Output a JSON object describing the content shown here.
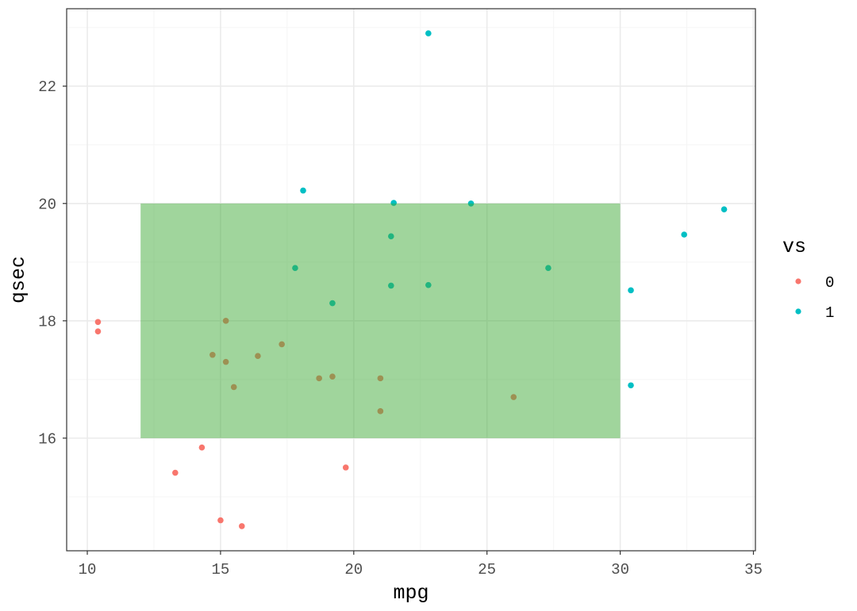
{
  "chart_data": {
    "type": "scatter",
    "title": "",
    "xlabel": "mpg",
    "ylabel": "qsec",
    "xlim": [
      9.225,
      35.075
    ],
    "ylim": [
      14.08,
      23.32
    ],
    "x_ticks": [
      10,
      15,
      20,
      25,
      30,
      35
    ],
    "y_ticks": [
      16,
      18,
      20,
      22
    ],
    "x_minor": [
      12.5,
      17.5,
      22.5,
      27.5,
      32.5
    ],
    "y_minor": [
      15,
      17,
      19,
      21,
      23
    ],
    "grid": true,
    "legend": {
      "title": "vs",
      "position": "right",
      "entries": [
        {
          "label": "0",
          "color": "#F8766D"
        },
        {
          "label": "1",
          "color": "#00BFC4"
        }
      ]
    },
    "annotation_rect": {
      "xmin": 12,
      "xmax": 30,
      "ymin": 16,
      "ymax": 20,
      "fill": "#41AB3A",
      "alpha": 0.5
    },
    "series": [
      {
        "name": "0",
        "color": "#F8766D",
        "points": [
          [
            21.0,
            16.46
          ],
          [
            21.0,
            17.02
          ],
          [
            18.7,
            17.02
          ],
          [
            14.3,
            15.84
          ],
          [
            16.4,
            17.4
          ],
          [
            17.3,
            17.6
          ],
          [
            15.2,
            18.0
          ],
          [
            10.4,
            17.98
          ],
          [
            10.4,
            17.82
          ],
          [
            14.7,
            17.42
          ],
          [
            15.5,
            16.87
          ],
          [
            15.2,
            17.3
          ],
          [
            13.3,
            15.41
          ],
          [
            19.2,
            17.05
          ],
          [
            26.0,
            16.7
          ],
          [
            15.8,
            14.5
          ],
          [
            19.7,
            15.5
          ],
          [
            15.0,
            14.6
          ]
        ]
      },
      {
        "name": "1",
        "color": "#00BFC4",
        "points": [
          [
            22.8,
            18.61
          ],
          [
            21.4,
            19.44
          ],
          [
            18.1,
            20.22
          ],
          [
            24.4,
            20.0
          ],
          [
            22.8,
            22.9
          ],
          [
            19.2,
            18.3
          ],
          [
            17.8,
            18.9
          ],
          [
            32.4,
            19.47
          ],
          [
            30.4,
            18.52
          ],
          [
            33.9,
            19.9
          ],
          [
            21.5,
            20.01
          ],
          [
            27.3,
            18.9
          ],
          [
            30.4,
            16.9
          ],
          [
            21.4,
            18.6
          ]
        ]
      }
    ]
  },
  "colors": {
    "panel_border": "#333333",
    "grid_major": "#EBEBEB",
    "grid_minor": "#F5F5F5",
    "tick": "#333333"
  }
}
